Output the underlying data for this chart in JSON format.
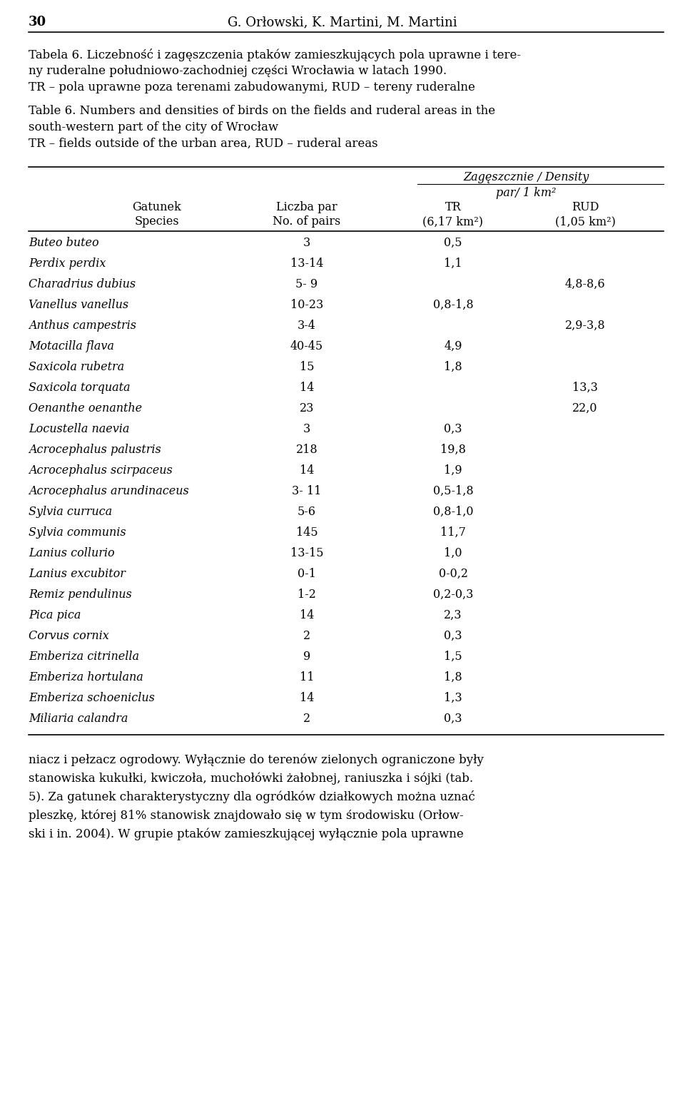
{
  "page_number": "30",
  "header_authors": "G. Orłowski, K. Martini, M. Martini",
  "caption_pl_lines": [
    "Tabela 6. Liczebność i zagęszczenia ptaków zamieszkujących pola uprawne i tere-",
    "ny ruderalne południowo-zachodniej części Wrocławia w latach 1990.",
    "TR – pola uprawne poza terenami zabudowanymi, RUD – tereny ruderalne"
  ],
  "caption_en_lines": [
    "Table 6. Numbers and densities of birds on the fields and ruderal areas in the",
    "south-western part of the city of Wrocław",
    "TR – fields outside of the urban area, RUD – ruderal areas"
  ],
  "col_headers": {
    "species_pl": "Gatunek",
    "species_en": "Species",
    "pairs_pl": "Liczba par",
    "pairs_en": "No. of pairs",
    "density_header": "Zagęszcznie / Density",
    "density_subheader": "par/ 1 km²",
    "tr_label": "TR",
    "tr_area": "(6,17 km²)",
    "rud_label": "RUD",
    "rud_area": "(1,05 km²)"
  },
  "rows": [
    {
      "species": "Buteo buteo",
      "pairs": "3",
      "tr": "0,5",
      "rud": ""
    },
    {
      "species": "Perdix perdix",
      "pairs": "13-14",
      "tr": "1,1",
      "rud": ""
    },
    {
      "species": "Charadrius dubius",
      "pairs": "5- 9",
      "tr": "",
      "rud": "4,8-8,6"
    },
    {
      "species": "Vanellus vanellus",
      "pairs": "10-23",
      "tr": "0,8-1,8",
      "rud": ""
    },
    {
      "species": "Anthus campestris",
      "pairs": "3-4",
      "tr": "",
      "rud": "2,9-3,8"
    },
    {
      "species": "Motacilla flava",
      "pairs": "40-45",
      "tr": "4,9",
      "rud": ""
    },
    {
      "species": "Saxicola rubetra",
      "pairs": "15",
      "tr": "1,8",
      "rud": ""
    },
    {
      "species": "Saxicola torquata",
      "pairs": "14",
      "tr": "",
      "rud": "13,3"
    },
    {
      "species": "Oenanthe oenanthe",
      "pairs": "23",
      "tr": "",
      "rud": "22,0"
    },
    {
      "species": "Locustella naevia",
      "pairs": "3",
      "tr": "0,3",
      "rud": ""
    },
    {
      "species": "Acrocephalus palustris",
      "pairs": "218",
      "tr": "19,8",
      "rud": ""
    },
    {
      "species": "Acrocephalus scirpaceus",
      "pairs": "14",
      "tr": "1,9",
      "rud": ""
    },
    {
      "species": "Acrocephalus arundinaceus",
      "pairs": "3- 11",
      "tr": "0,5-1,8",
      "rud": ""
    },
    {
      "species": "Sylvia curruca",
      "pairs": "5-6",
      "tr": "0,8-1,0",
      "rud": ""
    },
    {
      "species": "Sylvia communis",
      "pairs": "145",
      "tr": "11,7",
      "rud": ""
    },
    {
      "species": "Lanius collurio",
      "pairs": "13-15",
      "tr": "1,0",
      "rud": ""
    },
    {
      "species": "Lanius excubitor",
      "pairs": "0-1",
      "tr": "0-0,2",
      "rud": ""
    },
    {
      "species": "Remiz pendulinus",
      "pairs": "1-2",
      "tr": "0,2-0,3",
      "rud": ""
    },
    {
      "species": "Pica pica",
      "pairs": "14",
      "tr": "2,3",
      "rud": ""
    },
    {
      "species": "Corvus cornix",
      "pairs": "2",
      "tr": "0,3",
      "rud": ""
    },
    {
      "species": "Emberiza citrinella",
      "pairs": "9",
      "tr": "1,5",
      "rud": ""
    },
    {
      "species": "Emberiza hortulana",
      "pairs": "11",
      "tr": "1,8",
      "rud": ""
    },
    {
      "species": "Emberiza schoeniclus",
      "pairs": "14",
      "tr": "1,3",
      "rud": ""
    },
    {
      "species": "Miliaria calandra",
      "pairs": "2",
      "tr": "0,3",
      "rud": ""
    }
  ],
  "footer_lines": [
    "niacz i pełzacz ogrodowy. Wyłącznie do terenów zielonych ograniczone były",
    "stanowiska kukułki, kwiczoła, muchołówki żałobnej, raniuszka i sójki (tab.",
    "5). Za gatunek charakterystyczny dla ogródków działkowych można uznać",
    "pleszkę, której 81% stanowisk znajdowało się w tym środowisku (Orłow-",
    "ski i in. 2004). W grupie ptaków zamieszkującej wyłącznie pola uprawne"
  ],
  "bg_color": "#ffffff",
  "text_color": "#000000"
}
